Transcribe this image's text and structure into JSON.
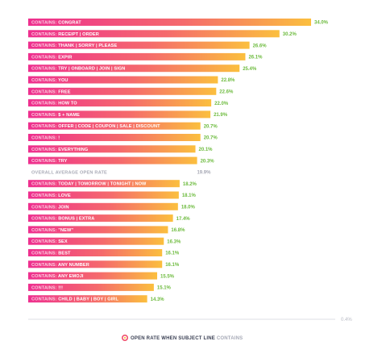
{
  "chart_data": {
    "type": "bar",
    "orientation": "horizontal",
    "series_prefix": "CONTAINS:",
    "categories": [
      "CONGRAT",
      "RECEIPT | ORDER",
      "THANK | SORRY | PLEASE",
      "EXPIR",
      "TRY | ONBOARD | JOIN | SIGN",
      "YOU",
      "FREE",
      "HOW TO",
      "$ + NAME",
      "OFFER | CODE | COUPON | SALE | DISCOUNT",
      "!",
      "EVERYTHING",
      "TRY",
      "OVERALL AVERAGE OPEN RATE",
      "TODAY | TOMORROW | TONIGHT | NOW",
      "LOVE",
      "JOIN",
      "BONUS | EXTRA",
      "\"NEW\"",
      "SEX",
      "BEST",
      "ANY NUMBER",
      "ANY EMOJI",
      "!!!",
      "CHILD | BABY | BOY | GIRL"
    ],
    "values": [
      34.0,
      30.2,
      26.6,
      26.1,
      25.4,
      22.8,
      22.6,
      22.0,
      21.9,
      20.7,
      20.7,
      20.1,
      20.3,
      19.9,
      18.2,
      18.1,
      18.0,
      17.4,
      16.8,
      16.3,
      16.1,
      16.1,
      15.5,
      15.1,
      14.3
    ],
    "value_labels": [
      "34.0%",
      "30.2%",
      "26.6%",
      "26.1%",
      "25.4%",
      "22.8%",
      "22.6%",
      "22.0%",
      "21.9%",
      "20.7%",
      "20.7%",
      "20.1%",
      "20.3%",
      "19.9%",
      "18.2%",
      "18.1%",
      "18.0%",
      "17.4%",
      "16.8%",
      "16.3%",
      "16.1%",
      "16.1%",
      "15.5%",
      "15.1%",
      "14.3%"
    ],
    "average_index": 13,
    "axis_tick_label": "0.4%",
    "legend": "OPEN RATE WHEN SUBJECT LINE",
    "legend_emphasis": "CONTAINS",
    "legend_position": "bottom-center",
    "colors": {
      "bar_start": "#ee2f8f",
      "bar_mid": "#f56a6c",
      "bar_end": "#fbbf3e",
      "value_text": "#6dbb3e",
      "average_text": "#a8aab6",
      "axis": "#dddfe6",
      "legend_marker": "#f0506e"
    },
    "grid": false
  }
}
